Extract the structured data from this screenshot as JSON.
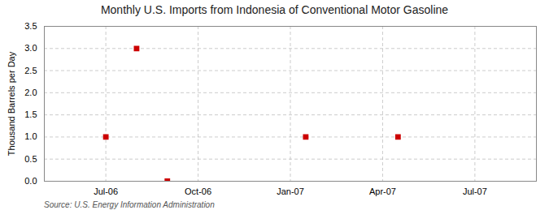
{
  "chart_data": {
    "type": "scatter",
    "title": "Monthly U.S. Imports from Indonesia of Conventional Motor Gasoline",
    "ylabel": "Thousand Barrels per Day",
    "source": "Source: U.S. Energy Information Administration",
    "x": [
      2,
      3,
      4,
      8.5,
      11.5
    ],
    "values": [
      1.0,
      3.0,
      0.0,
      1.0,
      1.0
    ],
    "color": "#cc0000",
    "marker": "square",
    "xlim": [
      0.0,
      16.0
    ],
    "xticks": [
      {
        "value": 2,
        "label": "Jul-06"
      },
      {
        "value": 5,
        "label": "Oct-06"
      },
      {
        "value": 8,
        "label": "Jan-07"
      },
      {
        "value": 11,
        "label": "Apr-07"
      },
      {
        "value": 14,
        "label": "Jul-07"
      }
    ],
    "ylim": [
      0,
      3.5
    ],
    "yticks": [
      {
        "value": 0,
        "label": "0.0"
      },
      0.5,
      {
        "value": 1,
        "label": "1.0"
      },
      1.5,
      {
        "value": 2,
        "label": "2.0"
      },
      2.5,
      {
        "value": 3,
        "label": "3.0"
      },
      3.5
    ],
    "grid": true
  }
}
